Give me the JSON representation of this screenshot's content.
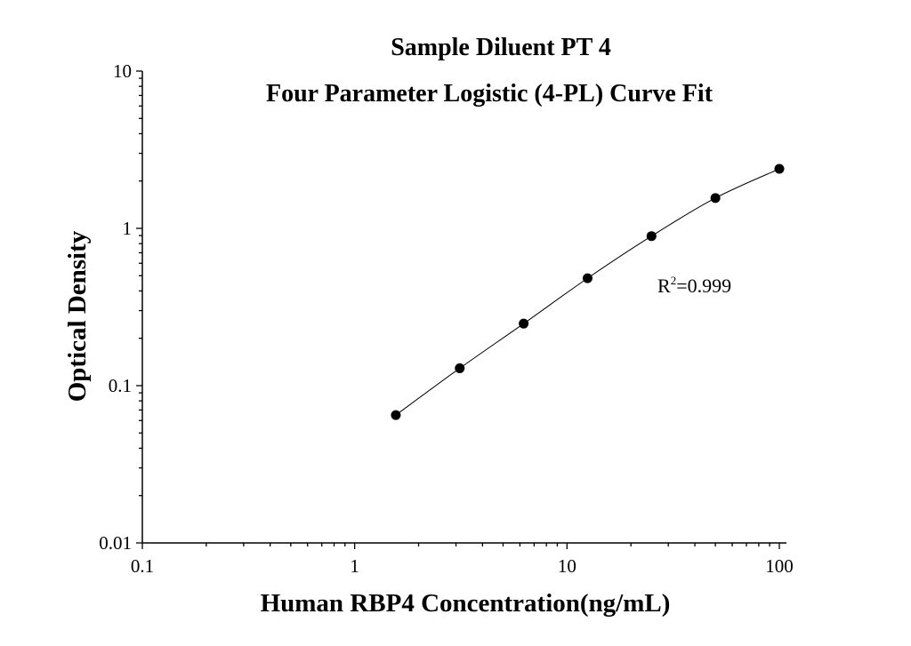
{
  "chart_data": {
    "type": "scatter",
    "title": "Sample Diluent PT 4",
    "subtitle": "Four Parameter Logistic (4-PL) Curve Fit",
    "xlabel": "Human RBP4 Concentration(ng/mL)",
    "ylabel": "Optical Density",
    "x_scale": "log",
    "y_scale": "log",
    "xlim": [
      0.1,
      100
    ],
    "ylim": [
      0.01,
      10
    ],
    "x_ticks": [
      {
        "value": 0.1,
        "label": "0.1"
      },
      {
        "value": 1,
        "label": "1"
      },
      {
        "value": 10,
        "label": "10"
      },
      {
        "value": 100,
        "label": "100"
      }
    ],
    "y_ticks": [
      {
        "value": 0.01,
        "label": "0.01"
      },
      {
        "value": 0.1,
        "label": "0.1"
      },
      {
        "value": 1,
        "label": "1"
      },
      {
        "value": 10,
        "label": "10"
      }
    ],
    "grid": false,
    "series": [
      {
        "x": [
          1.5625,
          3.125,
          6.25,
          12.5,
          25,
          50,
          100
        ],
        "y": [
          0.065,
          0.129,
          0.248,
          0.482,
          0.893,
          1.56,
          2.39
        ],
        "marker": "circle",
        "color": "#000000"
      }
    ],
    "fit_curve": {
      "model": "4-PL",
      "color": "#000000"
    },
    "annotation": {
      "base": "R",
      "superscript": "2",
      "rest": "=0.999"
    }
  }
}
